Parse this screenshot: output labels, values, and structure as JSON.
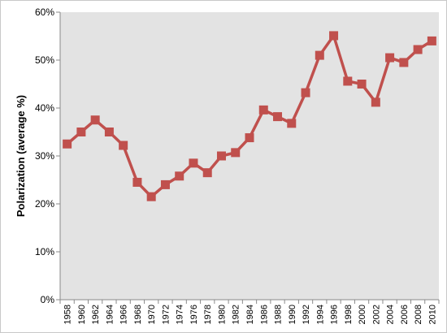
{
  "chart_data": {
    "type": "line",
    "title": "",
    "xlabel": "",
    "ylabel": "Polarization (average %)",
    "ylim": [
      0,
      60
    ],
    "y_ticks": [
      0,
      10,
      20,
      30,
      40,
      50,
      60
    ],
    "y_tick_suffix": "%",
    "grid": false,
    "plot_background": "#e3e3e3",
    "series_color": "#c0504d",
    "categories": [
      "1958",
      "1960",
      "1962",
      "1964",
      "1966",
      "1968",
      "1970",
      "1972",
      "1974",
      "1976",
      "1978",
      "1980",
      "1982",
      "1984",
      "1986",
      "1988",
      "1990",
      "1992",
      "1994",
      "1996",
      "1998",
      "2000",
      "2002",
      "2004",
      "2006",
      "2008",
      "2010"
    ],
    "series": [
      {
        "values": [
          32.5,
          35,
          37.5,
          35,
          32.2,
          24.5,
          21.5,
          24,
          25.8,
          28.5,
          26.5,
          30,
          30.7,
          33.8,
          39.6,
          38.2,
          36.8,
          43.2,
          51,
          55.1,
          45.6,
          45,
          41.2,
          50.5,
          49.5,
          52.2,
          54
        ]
      }
    ]
  }
}
